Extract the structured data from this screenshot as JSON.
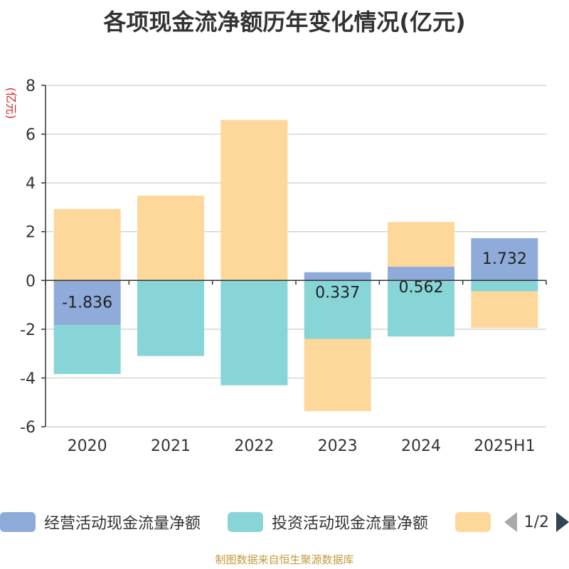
{
  "title": "各项现金流净额历年变化情况(亿元)",
  "footer": "制图数据来自恒生聚源数据库",
  "legend": {
    "items": [
      {
        "label": "经营活动现金流量净额",
        "color": "#8fabd9"
      },
      {
        "label": "投资活动现金流量净额",
        "color": "#88d5d8"
      },
      {
        "label": "",
        "color": "#fdd89a"
      }
    ],
    "page": "1/2"
  },
  "chart_data": {
    "type": "bar",
    "stacked": true,
    "ylabel": "(亿元)",
    "ylim": [
      -6,
      8
    ],
    "yticks": [
      -6,
      -4,
      -2,
      0,
      2,
      4,
      6,
      8
    ],
    "grid": true,
    "categories": [
      "2020",
      "2021",
      "2022",
      "2023",
      "2024",
      "2025H1"
    ],
    "series": [
      {
        "name": "经营活动现金流量净额",
        "color": "#8fabd9",
        "values": [
          -1.836,
          0.0,
          0.0,
          0.337,
          0.562,
          1.732
        ],
        "labels": [
          "-1.836",
          "",
          "",
          "0.337",
          "0.562",
          "1.732"
        ]
      },
      {
        "name": "投资活动现金流量净额",
        "color": "#88d5d8",
        "values": [
          -2.0,
          -3.1,
          -4.3,
          -2.4,
          -2.3,
          -0.45
        ]
      },
      {
        "name": "",
        "color": "#fdd89a",
        "values": [
          2.93,
          3.48,
          6.58,
          -2.96,
          1.83,
          -1.5
        ]
      }
    ]
  }
}
